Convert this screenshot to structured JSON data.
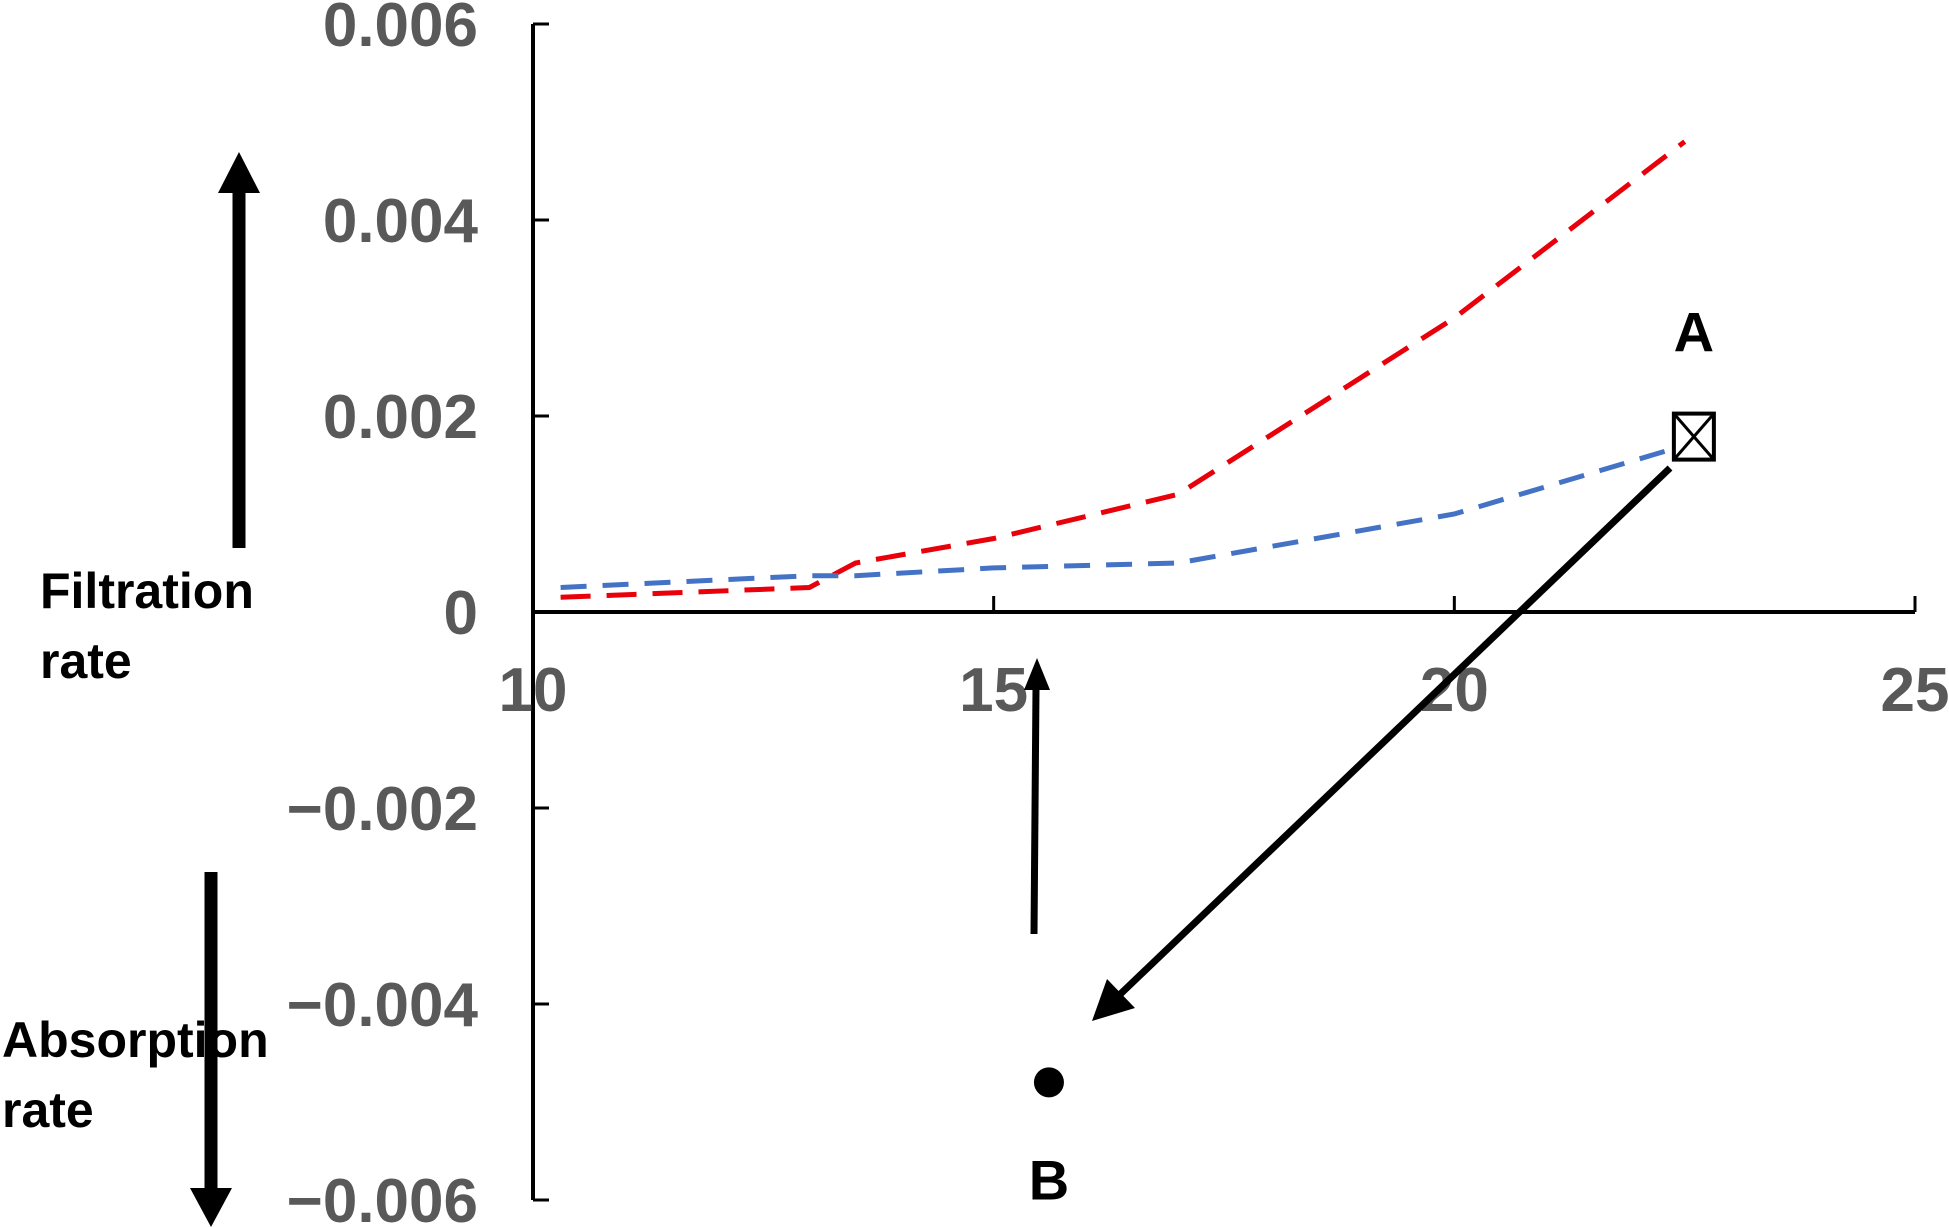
{
  "chart_data": {
    "type": "line",
    "x": [
      10.3,
      13,
      13.5,
      15,
      17,
      20,
      22.5
    ],
    "series": [
      {
        "values": [
          0.00015,
          0.00025,
          0.0005,
          0.00075,
          0.0012,
          0.003,
          0.0048
        ],
        "color": "#e8000b",
        "style": "dashed"
      },
      {
        "values": [
          0.00025,
          0.00037,
          0.00037,
          0.00045,
          0.0005,
          0.001,
          0.0017
        ],
        "color": "#4472c4",
        "style": "dashed"
      }
    ],
    "xlim": [
      10,
      25
    ],
    "ylim": [
      -0.006,
      0.006
    ],
    "xticks": [
      "10",
      "15",
      "20",
      "25"
    ],
    "yticks": [
      "−0.006",
      "−0.004",
      "−0.002",
      "0",
      "0.002",
      "0.004",
      "0.006"
    ],
    "points": [
      {
        "label": "A",
        "x": 22.6,
        "y": 0.0018,
        "marker": "boxed-x"
      },
      {
        "label": "B",
        "x": 15.6,
        "y": -0.0048,
        "marker": "filled-circle"
      }
    ],
    "annotations": {
      "filtration_label": [
        "Filtration",
        "rate"
      ],
      "absorption_label": [
        "Absorption",
        "rate"
      ]
    },
    "grid": false
  }
}
